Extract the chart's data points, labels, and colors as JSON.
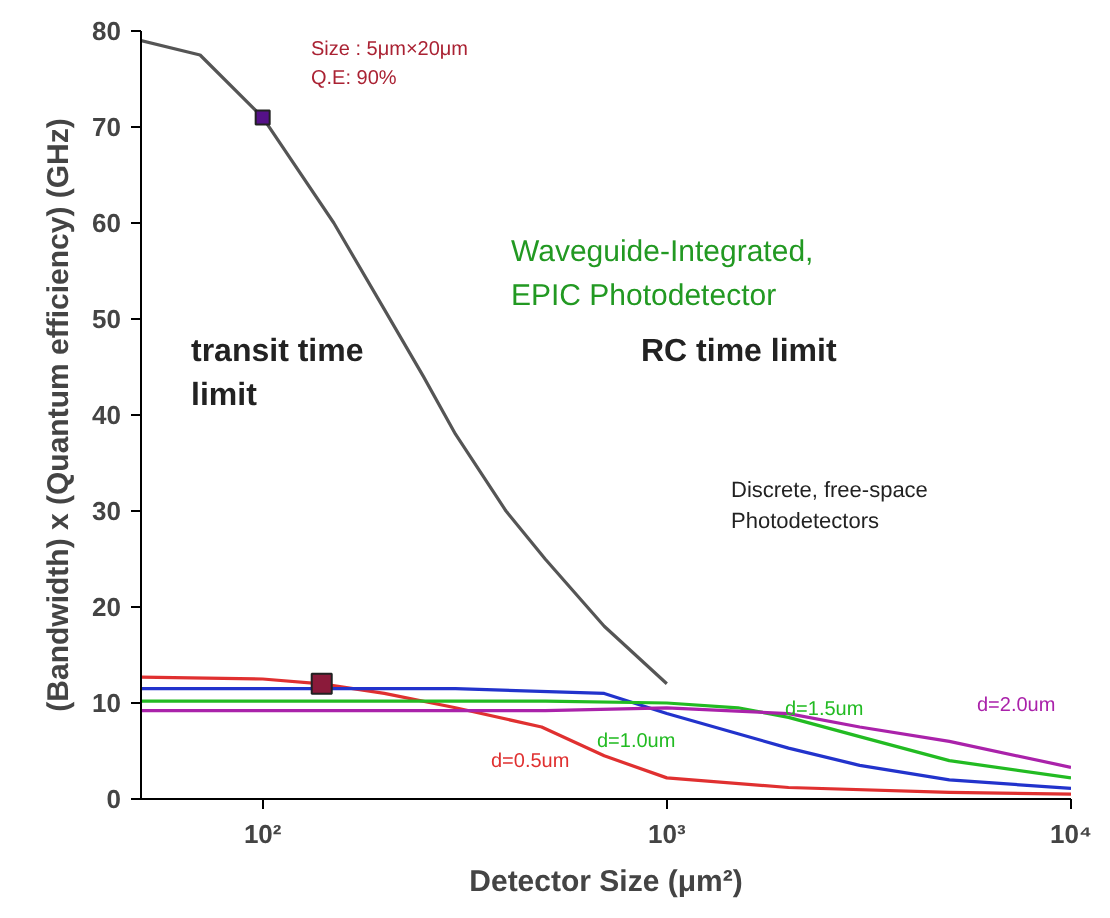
{
  "chart_data": {
    "type": "line",
    "xlabel": "Detector Size (μm²)",
    "ylabel": "(Bandwidth) x (Quantum efficiency) (GHz)",
    "log": "x",
    "xlim": [
      50,
      10000
    ],
    "xticks": [
      {
        "value": 100,
        "label": "10²"
      },
      {
        "value": 1000,
        "label": "10³"
      },
      {
        "value": 10000,
        "label": "10⁴"
      }
    ],
    "ylim": [
      0,
      80
    ],
    "yticks": [
      0,
      10,
      20,
      30,
      40,
      50,
      60,
      70,
      80
    ],
    "grid": false,
    "marker": "none",
    "line_style": "solid",
    "series": [
      {
        "color": "#555555",
        "x": [
          50,
          70,
          100,
          150,
          200,
          250,
          300,
          400,
          500,
          700,
          1000
        ],
        "values": [
          79,
          77.5,
          71,
          60,
          51,
          44,
          38,
          30,
          25,
          18,
          12
        ]
      },
      {
        "color": "#e03030",
        "x": [
          50,
          100,
          140,
          200,
          300,
          490,
          700,
          1000,
          2000,
          5000,
          10000
        ],
        "values": [
          12.7,
          12.5,
          12,
          11,
          9.5,
          7.5,
          4.5,
          2.2,
          1.2,
          0.7,
          0.5
        ]
      },
      {
        "color": "#2233cc",
        "x": [
          50,
          300,
          700,
          1000,
          1500,
          2000,
          3000,
          5000,
          10000
        ],
        "values": [
          11.5,
          11.5,
          11,
          8.9,
          6.8,
          5.3,
          3.5,
          2,
          1.1
        ]
      },
      {
        "color": "#22bb22",
        "x": [
          50,
          500,
          1000,
          1500,
          2000,
          3000,
          5000,
          10000
        ],
        "values": [
          10.2,
          10.2,
          10,
          9.5,
          8.5,
          6.5,
          4,
          2.2
        ]
      },
      {
        "color": "#aa22aa",
        "x": [
          50,
          500,
          1000,
          2000,
          3000,
          5000,
          10000
        ],
        "values": [
          9.2,
          9.2,
          9.5,
          8.9,
          7.5,
          6,
          3.3
        ]
      },
      {
        "type": "scatter",
        "marker": "square",
        "color": "#551188",
        "x": [
          100
        ],
        "values": [
          71
        ]
      },
      {
        "type": "scatter",
        "marker": "square",
        "color": "#8b1a3a",
        "x": [
          140
        ],
        "values": [
          12
        ]
      }
    ],
    "annotations": [
      "Size : 5μm×20μm\nQ.E: 90%",
      "Waveguide-Integrated,\nEPIC Photodetector",
      "transit time\nlimit",
      "RC time limit",
      "Discrete, free-space\nPhotodetectors",
      "d=0.5um",
      "d=1.0um",
      "d=1.5um",
      "d=2.0um"
    ]
  }
}
